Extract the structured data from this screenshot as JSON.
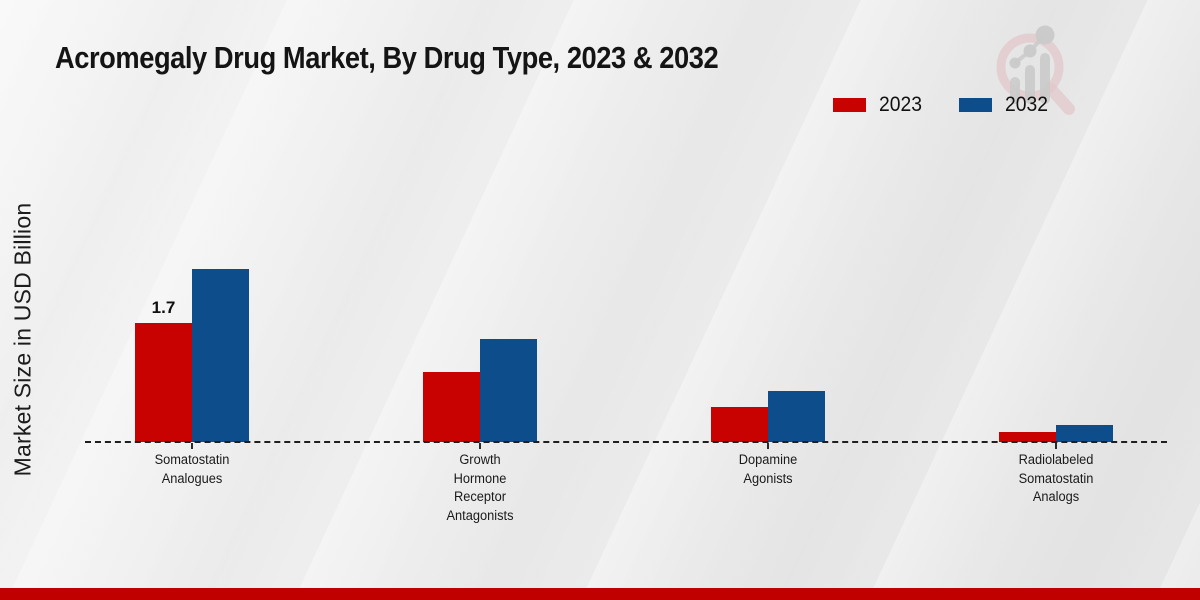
{
  "header": {
    "title": "Acromegaly Drug Market, By Drug Type, 2023 & 2032"
  },
  "chart_data": {
    "type": "bar",
    "title": "Acromegaly Drug Market, By Drug Type, 2023 & 2032",
    "xlabel": "",
    "ylabel": "Market Size in USD Billion",
    "categories": [
      "Somatostatin Analogues",
      "Growth Hormone Receptor Antagonists",
      "Dopamine Agonists",
      "Radiolabeled Somatostatin Analogs"
    ],
    "series": [
      {
        "name": "2023",
        "color": "#c80101",
        "values": [
          1.7,
          1.0,
          0.5,
          0.15
        ]
      },
      {
        "name": "2032",
        "color": "#0d4d8c",
        "values": [
          2.47,
          1.47,
          0.73,
          0.24
        ]
      }
    ],
    "bar_label": {
      "series_index": 0,
      "category_index": 0,
      "text": "1.7"
    },
    "ylim": [
      0,
      3
    ],
    "grid": false,
    "baseline_style": "dashed",
    "legend_position": "top-right"
  },
  "icons": {
    "watermark": "magnifier-growth-chart-logo"
  },
  "footer": {
    "bar_color": "#c00000"
  }
}
